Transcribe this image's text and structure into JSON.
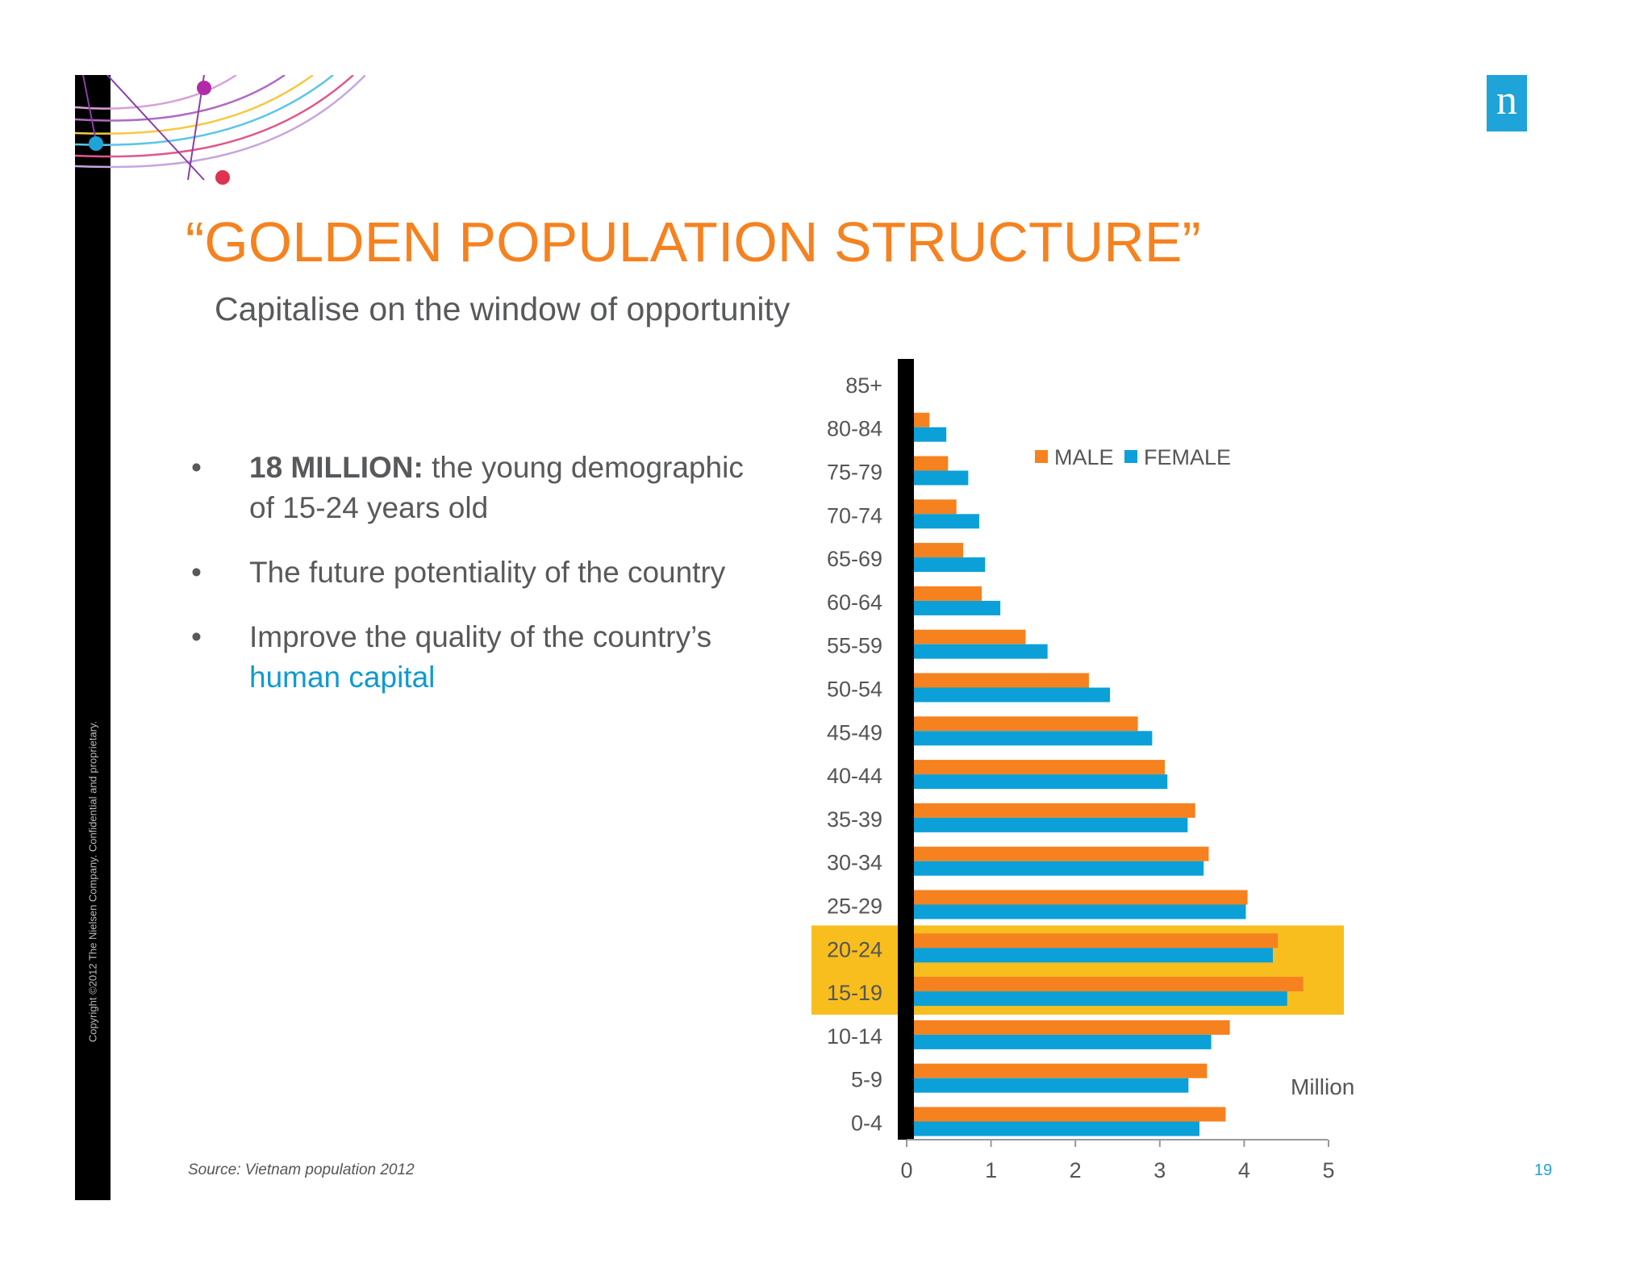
{
  "copyright": "Copyright ©2012 The Nielsen Company. Confidential and proprietary.",
  "logo_letter": "n",
  "title": "“GOLDEN POPULATION STRUCTURE”",
  "subtitle": "Capitalise on the window of opportunity",
  "bullets": {
    "b1_bold": "18 MILLION:",
    "b1_text": " the young demographic of 15-24 years old",
    "b2_text": "The future potentiality of the country",
    "b3_text": "Improve the quality of the country’s ",
    "b3_highlight": "human capital"
  },
  "source": "Source: Vietnam population 2012",
  "page_number": "19",
  "colors": {
    "male": "#f5821f",
    "female": "#0ba0d8",
    "highlight_band": "#f7be1e",
    "title": "#f5821f"
  },
  "chart_data": {
    "type": "bar",
    "orientation": "horizontal",
    "categories": [
      "0-4",
      "5-9",
      "10-14",
      "15-19",
      "20-24",
      "25-29",
      "30-34",
      "35-39",
      "40-44",
      "45-49",
      "50-54",
      "55-59",
      "60-64",
      "65-69",
      "70-74",
      "75-79",
      "80-84",
      "85+"
    ],
    "series": [
      {
        "name": "MALE",
        "values": [
          3.78,
          3.56,
          3.83,
          4.7,
          4.4,
          4.04,
          3.58,
          3.42,
          3.06,
          2.74,
          2.16,
          1.41,
          0.89,
          0.67,
          0.59,
          0.49,
          0.27,
          0
        ]
      },
      {
        "name": "FEMALE",
        "values": [
          3.47,
          3.34,
          3.61,
          4.51,
          4.34,
          4.02,
          3.52,
          3.33,
          3.09,
          2.91,
          2.41,
          1.67,
          1.11,
          0.93,
          0.86,
          0.73,
          0.47,
          0
        ]
      }
    ],
    "xlim": [
      0,
      5
    ],
    "xticks": [
      "0",
      "1",
      "2",
      "3",
      "4",
      "5"
    ],
    "xlabel": "Million",
    "highlighted_categories": [
      "15-19",
      "20-24"
    ],
    "legend_position": "top-center"
  }
}
